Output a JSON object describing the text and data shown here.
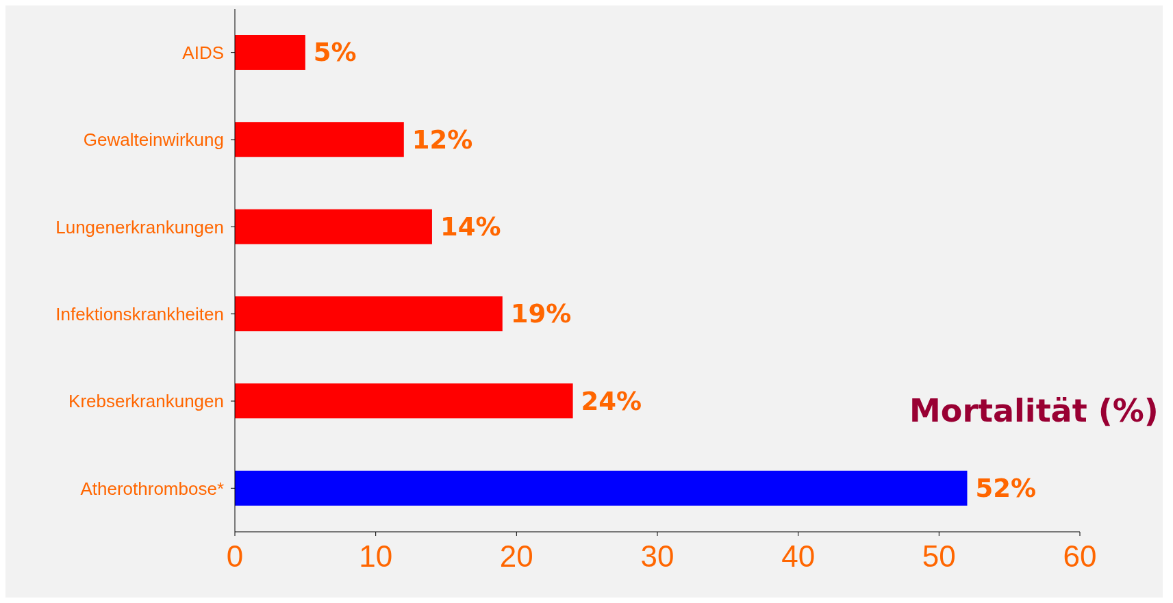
{
  "chart_data": {
    "type": "bar",
    "orientation": "horizontal",
    "title": "Mortalität (%)",
    "categories": [
      "AIDS",
      "Gewalteinwirkung",
      "Lungenerkrankungen",
      "Infektionskrankheiten",
      "Krebserkrankungen",
      "Atherothrombose*"
    ],
    "values": [
      5,
      12,
      14,
      19,
      24,
      52
    ],
    "colors": [
      "#ff0000",
      "#ff0000",
      "#ff0000",
      "#ff0000",
      "#ff0000",
      "#0000ff"
    ],
    "value_labels": [
      "5%",
      "12%",
      "14%",
      "19%",
      "24%",
      "52%"
    ],
    "xlim": [
      0,
      60
    ],
    "xticks": [
      0,
      10,
      20,
      30,
      40,
      50,
      60
    ],
    "grid": false
  }
}
